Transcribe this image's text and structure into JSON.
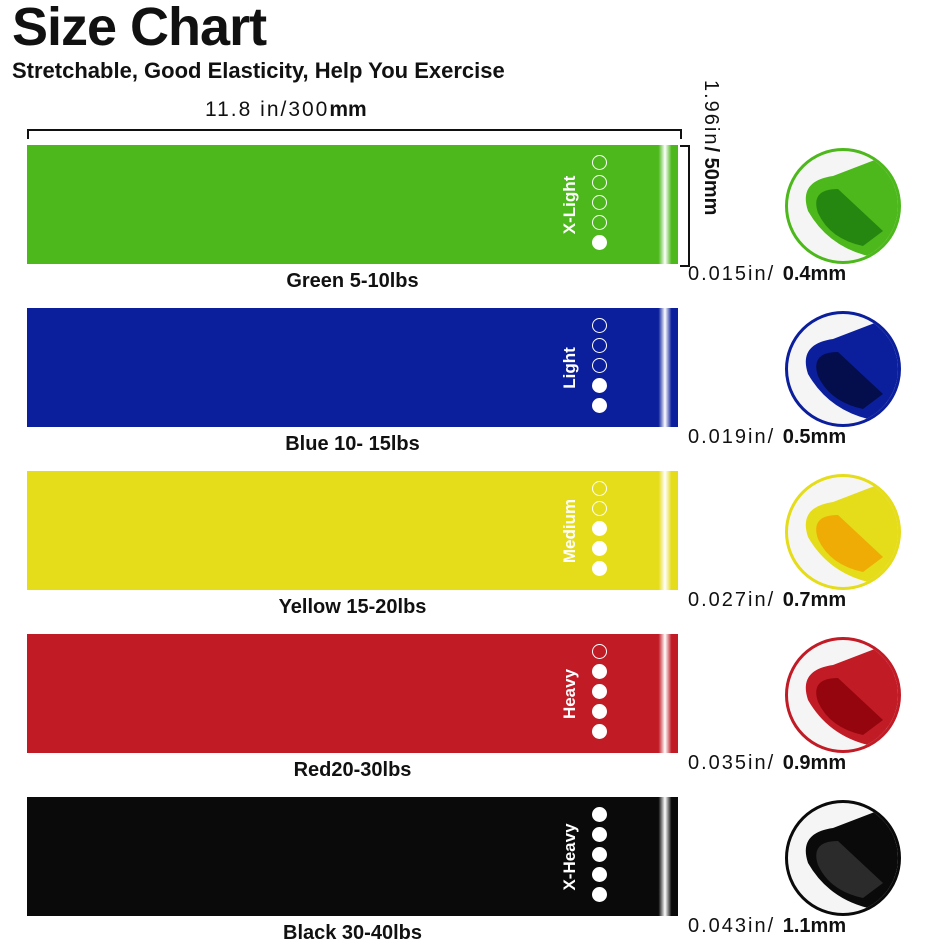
{
  "title": "Size Chart",
  "subtitle": "Stretchable, Good Elasticity, Help You Exercise",
  "length": {
    "a": "11.8 in/300",
    "b": "mm"
  },
  "width": {
    "a": "1.96in",
    "b": "/ 50mm"
  },
  "bands": [
    {
      "name": "Green 5-10lbs",
      "level": "X-Light",
      "dots_filled": 1,
      "thickness_in": "0.015in/",
      "thickness_mm": "0.4mm",
      "color": "#4db81c",
      "dark": "#1c7a0c"
    },
    {
      "name": "Blue 10- 15lbs",
      "level": "Light",
      "dots_filled": 2,
      "thickness_in": "0.019in/",
      "thickness_mm": "0.5mm",
      "color": "#0b1f9c",
      "dark": "#020a3a"
    },
    {
      "name": "Yellow 15-20lbs",
      "level": "Medium",
      "dots_filled": 3,
      "thickness_in": "0.027in/",
      "thickness_mm": "0.7mm",
      "color": "#e5dc1a",
      "dark": "#f0a000"
    },
    {
      "name": "Red20-30lbs",
      "level": "Heavy",
      "dots_filled": 4,
      "thickness_in": "0.035in/",
      "thickness_mm": "0.9mm",
      "color": "#c11b26",
      "dark": "#8a0008"
    },
    {
      "name": "Black 30-40lbs",
      "level": "X-Heavy",
      "dots_filled": 5,
      "thickness_in": "0.043in/",
      "thickness_mm": "1.1mm",
      "color": "#0a0a0a",
      "dark": "#333333"
    }
  ]
}
